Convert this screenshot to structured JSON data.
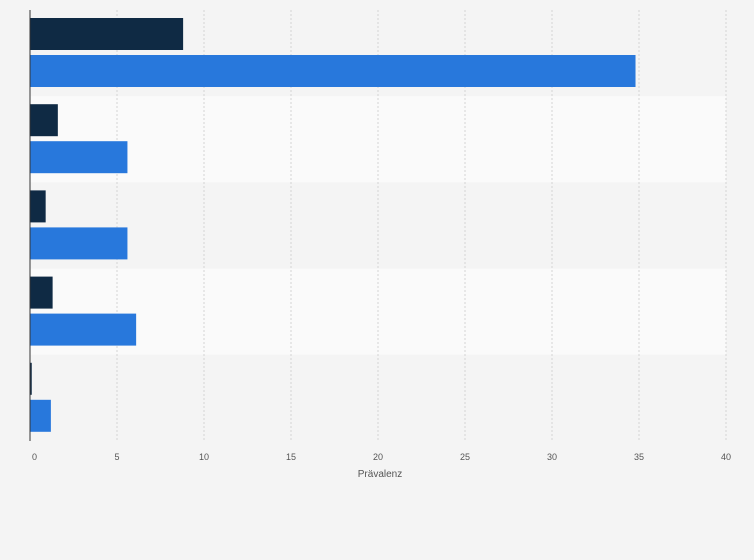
{
  "chart_data": {
    "type": "bar",
    "orientation": "horizontal",
    "categories": [
      "",
      "",
      "",
      "",
      ""
    ],
    "series": [
      {
        "values": [
          8.8,
          1.6,
          0.9,
          1.3,
          0.1
        ]
      },
      {
        "values": [
          34.8,
          5.6,
          5.6,
          6.1,
          1.2
        ]
      }
    ],
    "xlabel": "Prävalenz",
    "xlim": [
      0,
      40
    ],
    "xticks": [
      0,
      5,
      10,
      15,
      20,
      25,
      30,
      35,
      40
    ],
    "grid": true,
    "legend": "none"
  },
  "colors": {
    "series": [
      "#0f2a44",
      "#2878dc"
    ],
    "band_even": "#f4f4f4",
    "band_odd": "#fafafa",
    "grid": "#d4d4d4",
    "axis": "#333333",
    "tick_text": "#555555"
  }
}
